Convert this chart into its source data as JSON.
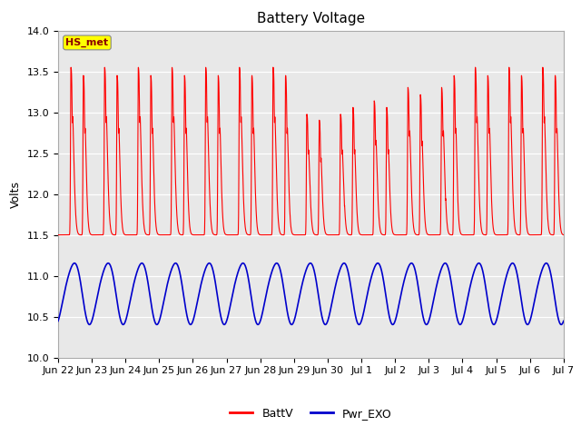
{
  "title": "Battery Voltage",
  "ylabel": "Volts",
  "ylim": [
    10.0,
    14.0
  ],
  "yticks": [
    10.0,
    10.5,
    11.0,
    11.5,
    12.0,
    12.5,
    13.0,
    13.5,
    14.0
  ],
  "x_tick_labels": [
    "Jun 22",
    "Jun 23",
    "Jun 24",
    "Jun 25",
    "Jun 26",
    "Jun 27",
    "Jun 28",
    "Jun 29",
    "Jun 30",
    "Jul 1",
    "Jul 2",
    "Jul 3",
    "Jul 4",
    "Jul 5",
    "Jul 6",
    "Jul 7"
  ],
  "battv_color": "#FF0000",
  "pwrexo_color": "#0000CC",
  "bg_color": "#E8E8E8",
  "legend_label_battv": "BattV",
  "legend_label_pwrexo": "Pwr_EXO",
  "annotation_text": "HS_met",
  "annotation_color": "#FFFF00",
  "annotation_text_color": "#8B0000",
  "title_fontsize": 11,
  "label_fontsize": 9,
  "tick_fontsize": 8
}
